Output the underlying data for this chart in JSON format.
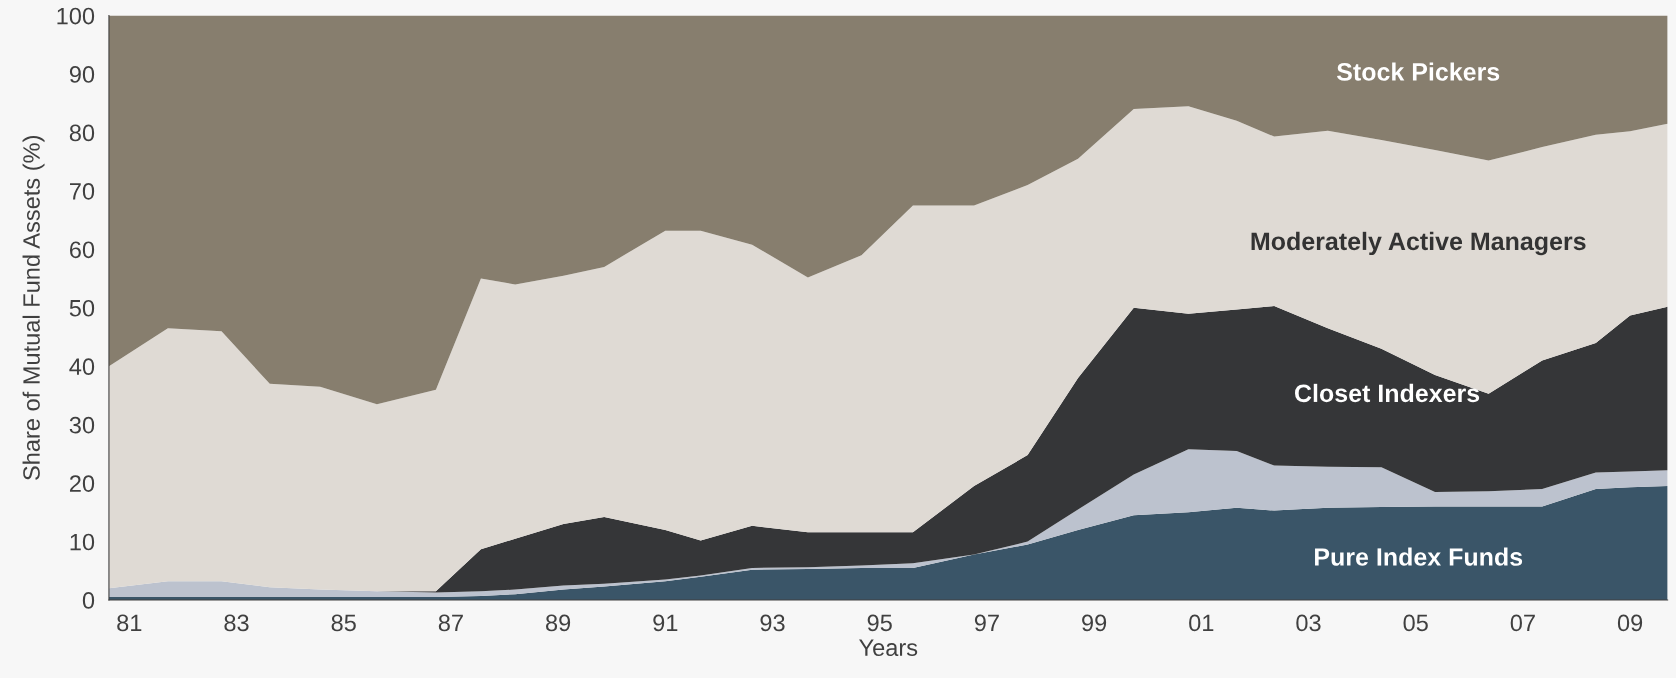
{
  "chart_data": {
    "type": "area",
    "stacked": true,
    "xlabel": "Years",
    "ylabel": "Share of Mutual Fund Assets (%)",
    "x": [
      1980.62,
      1981.72,
      1982.72,
      1983.62,
      1984.56,
      1985.62,
      1986.72,
      1987.56,
      1988.2,
      1989.1,
      1989.86,
      1991.0,
      1991.66,
      1992.62,
      1993.66,
      1994.66,
      1995.62,
      1996.76,
      1997.76,
      1998.7,
      1999.74,
      2000.76,
      2001.66,
      2002.36,
      2003.36,
      2004.36,
      2005.36,
      2006.36,
      2007.36,
      2008.36,
      2009.0,
      2009.7
    ],
    "series": [
      {
        "name": "Pure Index Funds",
        "color": "#3a5568",
        "values": [
          0.5,
          0.5,
          0.5,
          0.5,
          0.5,
          0.5,
          0.5,
          0.7,
          1,
          1.8,
          2.3,
          3.2,
          4,
          5.2,
          5.3,
          5.5,
          5.5,
          7.8,
          9.5,
          12,
          14.5,
          15,
          15.8,
          15.3,
          15.8,
          15.9,
          16,
          16,
          16,
          19,
          19.3,
          19.5
        ]
      },
      {
        "color": "#bcc2ce",
        "values": [
          1.5,
          2.7,
          2.7,
          1.7,
          1.3,
          1,
          0.8,
          0.8,
          0.8,
          0.7,
          0.5,
          0.3,
          0.2,
          0.3,
          0.3,
          0.4,
          0.8,
          0,
          0.5,
          3.5,
          7,
          10.8,
          9.7,
          7.7,
          7,
          6.8,
          2.5,
          2.6,
          3,
          2.8,
          2.7,
          2.7
        ]
      },
      {
        "name": "Closet Indexers",
        "color": "#353638",
        "values": [
          0,
          0,
          0,
          0,
          0,
          0,
          0.2,
          7.2,
          8.7,
          10.5,
          11.4,
          8.5,
          6,
          7.2,
          6,
          5.7,
          5.3,
          11.7,
          14.8,
          22.5,
          28.5,
          23.2,
          24.2,
          27.3,
          23.7,
          20.3,
          20,
          16.7,
          22,
          22.2,
          26.7,
          28
        ]
      },
      {
        "name": "Moderately Active Managers",
        "color": "#dfdad4",
        "values": [
          38,
          43.3,
          42.8,
          34.8,
          34.7,
          32,
          34.5,
          46.3,
          43.5,
          42.5,
          42.8,
          51.2,
          53,
          48.1,
          43.6,
          47.4,
          55.9,
          48,
          46.2,
          37.5,
          34,
          35.5,
          32.3,
          29,
          33.8,
          35.7,
          38.5,
          39.9,
          36.5,
          35.6,
          31.5,
          31.3
        ]
      },
      {
        "name": "Stock Pickers",
        "color": "#877e6e",
        "values": [
          60,
          53.5,
          54,
          63,
          63.5,
          66.5,
          64,
          45,
          46,
          44.5,
          43,
          36.8,
          36.8,
          39.2,
          44.8,
          41,
          32.5,
          32.5,
          29,
          24.5,
          16,
          15.5,
          18,
          20.7,
          19.7,
          21.3,
          23,
          24.8,
          22.5,
          20.4,
          19.8,
          18.5
        ]
      }
    ],
    "xlim": [
      1980.62,
      2009.7
    ],
    "xticks": [
      {
        "value": 1981,
        "label": "81"
      },
      {
        "value": 1983,
        "label": "83"
      },
      {
        "value": 1985,
        "label": "85"
      },
      {
        "value": 1987,
        "label": "87"
      },
      {
        "value": 1989,
        "label": "89"
      },
      {
        "value": 1991,
        "label": "91"
      },
      {
        "value": 1993,
        "label": "93"
      },
      {
        "value": 1995,
        "label": "95"
      },
      {
        "value": 1997,
        "label": "97"
      },
      {
        "value": 1999,
        "label": "99"
      },
      {
        "value": 2001,
        "label": "01"
      },
      {
        "value": 2003,
        "label": "03"
      },
      {
        "value": 2005,
        "label": "05"
      },
      {
        "value": 2007,
        "label": "07"
      },
      {
        "value": 2009,
        "label": "09"
      }
    ],
    "ylim": [
      0,
      100
    ],
    "yticks": [
      0,
      10,
      20,
      30,
      40,
      50,
      60,
      70,
      80,
      90,
      100
    ],
    "grid": false,
    "legend": false
  }
}
